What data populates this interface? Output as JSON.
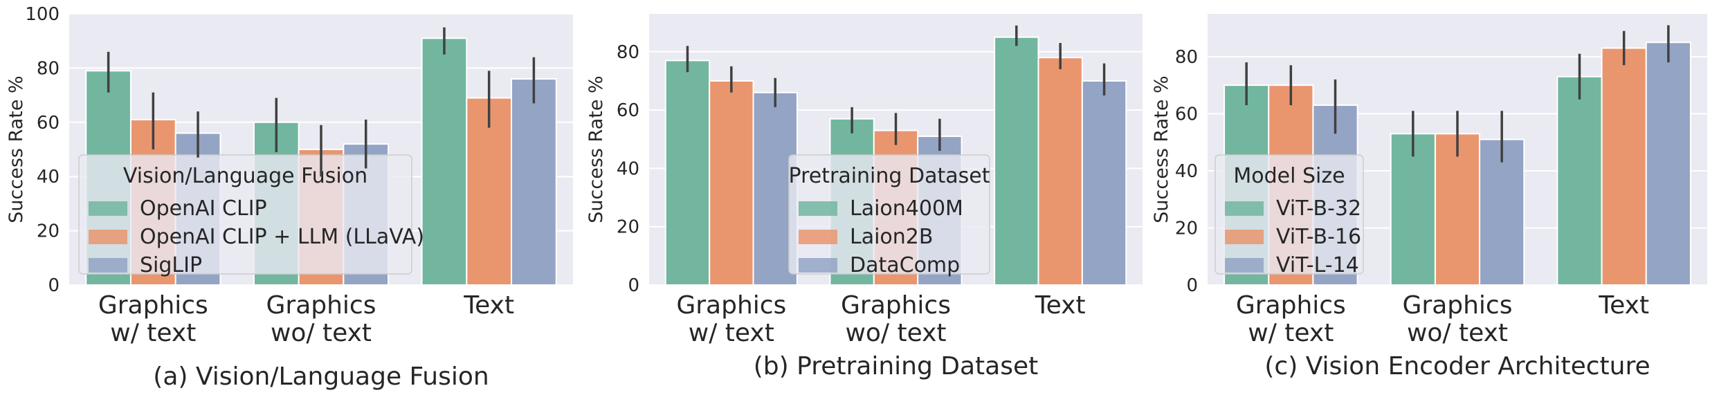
{
  "colors": {
    "plot_bg": "#eaeaf2",
    "grid": "#ffffff",
    "series": [
      "#72b69f",
      "#e9966f",
      "#93a4c4"
    ],
    "error_bar": "#404040",
    "text": "#262626"
  },
  "chart_data": [
    {
      "type": "bar",
      "title": "(a) Vision/Language Fusion",
      "ylabel": "Success Rate %",
      "ylim": [
        0,
        100
      ],
      "yticks": [
        0,
        20,
        40,
        60,
        80,
        100
      ],
      "categories": [
        [
          "Graphics",
          "w/ text"
        ],
        [
          "Graphics",
          "wo/ text"
        ],
        [
          "Text"
        ]
      ],
      "legend_title": "Vision/Language Fusion",
      "legend_position": "lower-left",
      "series": [
        {
          "name": "OpenAI CLIP",
          "values": [
            79,
            60,
            91
          ],
          "err_low": [
            71,
            49,
            85
          ],
          "err_high": [
            86,
            69,
            95
          ]
        },
        {
          "name": "OpenAI CLIP + LLM (LLaVA)",
          "values": [
            61,
            50,
            69
          ],
          "err_low": [
            50,
            40,
            58
          ],
          "err_high": [
            71,
            59,
            79
          ]
        },
        {
          "name": "SigLIP",
          "values": [
            56,
            52,
            76
          ],
          "err_low": [
            47,
            43,
            67
          ],
          "err_high": [
            64,
            61,
            84
          ]
        }
      ]
    },
    {
      "type": "bar",
      "title": "(b) Pretraining Dataset",
      "ylabel": "Success Rate %",
      "ylim": [
        0,
        93
      ],
      "yticks": [
        0,
        20,
        40,
        60,
        80
      ],
      "categories": [
        [
          "Graphics",
          "w/ text"
        ],
        [
          "Graphics",
          "wo/ text"
        ],
        [
          "Text"
        ]
      ],
      "legend_title": "Pretraining Dataset",
      "legend_position": "lower-center",
      "series": [
        {
          "name": "Laion400M",
          "values": [
            77,
            57,
            85
          ],
          "err_low": [
            73,
            52,
            82
          ],
          "err_high": [
            82,
            61,
            89
          ]
        },
        {
          "name": "Laion2B",
          "values": [
            70,
            53,
            78
          ],
          "err_low": [
            66,
            48,
            74
          ],
          "err_high": [
            75,
            59,
            83
          ]
        },
        {
          "name": "DataComp",
          "values": [
            66,
            51,
            70
          ],
          "err_low": [
            61,
            46,
            65
          ],
          "err_high": [
            71,
            57,
            76
          ]
        }
      ]
    },
    {
      "type": "bar",
      "title": "(c) Vision Encoder Architecture",
      "ylabel": "Success Rate %",
      "ylim": [
        0,
        95
      ],
      "yticks": [
        0,
        20,
        40,
        60,
        80
      ],
      "categories": [
        [
          "Graphics",
          "w/ text"
        ],
        [
          "Graphics",
          "wo/ text"
        ],
        [
          "Text"
        ]
      ],
      "legend_title": "Model Size",
      "legend_position": "lower-left",
      "series": [
        {
          "name": "ViT-B-32",
          "values": [
            70,
            53,
            73
          ],
          "err_low": [
            63,
            45,
            65
          ],
          "err_high": [
            78,
            61,
            81
          ]
        },
        {
          "name": "ViT-B-16",
          "values": [
            70,
            53,
            83
          ],
          "err_low": [
            63,
            45,
            77
          ],
          "err_high": [
            77,
            61,
            89
          ]
        },
        {
          "name": "ViT-L-14",
          "values": [
            63,
            51,
            85
          ],
          "err_low": [
            53,
            43,
            78
          ],
          "err_high": [
            72,
            61,
            91
          ]
        }
      ]
    }
  ]
}
